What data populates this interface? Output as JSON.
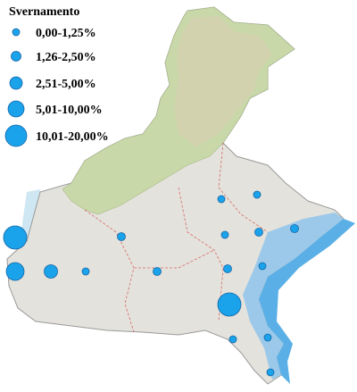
{
  "legend": {
    "title": "Svernamento",
    "classes": [
      "0,00-1,25%",
      "1,26-2,50%",
      "2,51-5,00%",
      "5,01-10,00%",
      "10,01-20,00%"
    ]
  }
}
